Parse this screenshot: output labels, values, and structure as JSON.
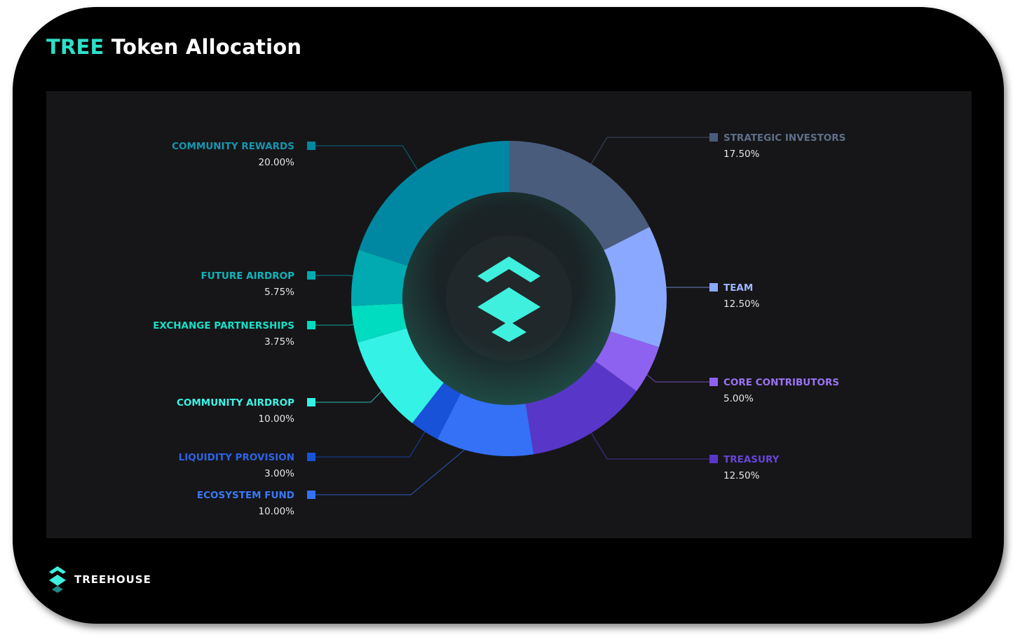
{
  "title": {
    "accent": "TREE",
    "rest": " Token Allocation"
  },
  "brand": {
    "name": "TREEHOUSE",
    "icon": "treehouse-logo-icon"
  },
  "center_icon": "treehouse-logo-icon",
  "chart_data": {
    "type": "pie",
    "style": "donut",
    "slices": [
      {
        "label": "STRATEGIC INVESTORS",
        "value": 17.5,
        "display": "17.50%",
        "color": "#4a5c7c",
        "label_color": "#5f6e8a",
        "side": "right"
      },
      {
        "label": "TEAM",
        "value": 12.5,
        "display": "12.50%",
        "color": "#8aa8ff",
        "label_color": "#9eb6ff",
        "side": "right"
      },
      {
        "label": "CORE CONTRIBUTORS",
        "value": 5.0,
        "display": "5.00%",
        "color": "#8e62f0",
        "label_color": "#9b73f3",
        "side": "right"
      },
      {
        "label": "TREASURY",
        "value": 12.5,
        "display": "12.50%",
        "color": "#5837c8",
        "label_color": "#6845d6",
        "side": "right"
      },
      {
        "label": "ECOSYSTEM FUND",
        "value": 10.0,
        "display": "10.00%",
        "color": "#3471f7",
        "label_color": "#3a79f7",
        "side": "left"
      },
      {
        "label": "LIQUIDITY PROVISION",
        "value": 3.0,
        "display": "3.00%",
        "color": "#1752d8",
        "label_color": "#2d63e6",
        "side": "left"
      },
      {
        "label": "COMMUNITY AIRDROP",
        "value": 10.0,
        "display": "10.00%",
        "color": "#34f2e6",
        "label_color": "#3ef3e6",
        "side": "left"
      },
      {
        "label": "EXCHANGE PARTNERSHIPS",
        "value": 3.75,
        "display": "3.75%",
        "color": "#00dcc0",
        "label_color": "#19dfc6",
        "side": "left"
      },
      {
        "label": "FUTURE AIRDROP",
        "value": 5.75,
        "display": "5.75%",
        "color": "#01a9b0",
        "label_color": "#10b4ba",
        "side": "left"
      },
      {
        "label": "COMMUNITY REWARDS",
        "value": 20.0,
        "display": "20.00%",
        "color": "#0088a3",
        "label_color": "#1796af",
        "side": "left"
      }
    ]
  }
}
